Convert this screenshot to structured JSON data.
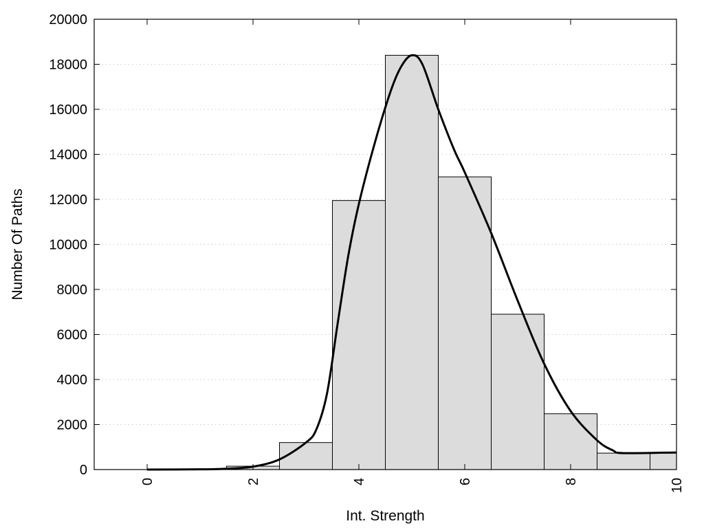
{
  "chart_data": {
    "type": "bar",
    "title": "",
    "xlabel": "Int. Strength",
    "ylabel": "Number Of Paths",
    "xlim": [
      -1,
      10
    ],
    "ylim": [
      0,
      20000
    ],
    "x_ticks": [
      0,
      2,
      4,
      6,
      8,
      10
    ],
    "y_ticks": [
      0,
      2000,
      4000,
      6000,
      8000,
      10000,
      12000,
      14000,
      16000,
      18000,
      20000
    ],
    "grid": "horizontal-dotted",
    "bar_width": 1,
    "bars": [
      {
        "x": 0,
        "value": 0
      },
      {
        "x": 1,
        "value": 0
      },
      {
        "x": 2,
        "value": 150
      },
      {
        "x": 3,
        "value": 1200
      },
      {
        "x": 4,
        "value": 11950
      },
      {
        "x": 5,
        "value": 18400
      },
      {
        "x": 6,
        "value": 13000
      },
      {
        "x": 7,
        "value": 6900
      },
      {
        "x": 8,
        "value": 2480
      },
      {
        "x": 9,
        "value": 730
      },
      {
        "x": 10,
        "value": 730
      }
    ],
    "curve": [
      [
        0,
        0
      ],
      [
        1,
        10
      ],
      [
        1.5,
        40
      ],
      [
        2,
        130
      ],
      [
        2.5,
        450
      ],
      [
        3,
        1200
      ],
      [
        3.2,
        1800
      ],
      [
        3.4,
        3400
      ],
      [
        3.6,
        6500
      ],
      [
        3.8,
        9500
      ],
      [
        4,
        11800
      ],
      [
        4.3,
        14500
      ],
      [
        4.6,
        16800
      ],
      [
        4.8,
        17900
      ],
      [
        5,
        18400
      ],
      [
        5.2,
        18000
      ],
      [
        5.5,
        16000
      ],
      [
        5.8,
        14200
      ],
      [
        6,
        13200
      ],
      [
        6.5,
        10500
      ],
      [
        7,
        7500
      ],
      [
        7.5,
        4700
      ],
      [
        8,
        2600
      ],
      [
        8.5,
        1300
      ],
      [
        8.8,
        850
      ],
      [
        9,
        730
      ],
      [
        10,
        760
      ]
    ],
    "colors": {
      "bar_fill": "#dcdcdc",
      "bar_stroke": "#000000",
      "curve": "#000000",
      "grid": "#c8c8c8"
    }
  }
}
